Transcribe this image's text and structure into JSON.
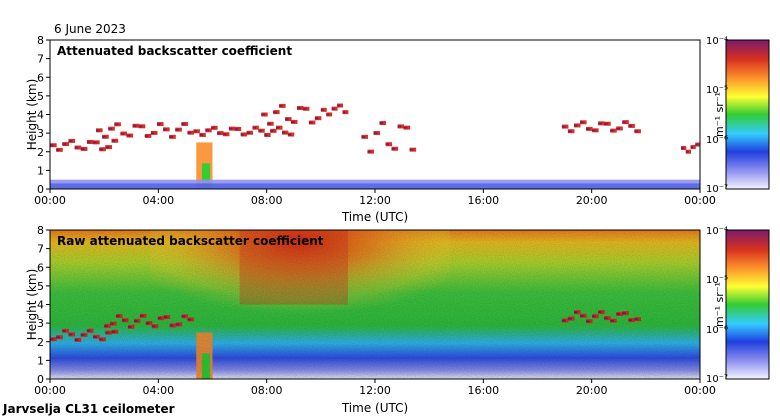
{
  "date_label": "6 June 2023",
  "footer_label": "Jarvselja CL31 ceilometer",
  "colors": {
    "dark_red": "#7f0000",
    "red": "#d7301f",
    "orange": "#fc8d2b",
    "yellow": "#ffff33",
    "green": "#33cc33",
    "cyan": "#33ccff",
    "blue": "#2040e0",
    "violet": "#9090f0",
    "pale": "#e8e8ff",
    "purple": "#7a1a6a"
  },
  "chart_data": [
    {
      "type": "heatmap",
      "title": "Attenuated backscatter coefficient",
      "xlabel": "Time (UTC)",
      "ylabel": "Height (km)",
      "xlim": [
        0,
        24
      ],
      "ylim": [
        0,
        8
      ],
      "x_ticks": [
        "00:00",
        "04:00",
        "08:00",
        "12:00",
        "16:00",
        "20:00",
        "00:00"
      ],
      "y_ticks": [
        "0",
        "1",
        "2",
        "3",
        "4",
        "5",
        "6",
        "7",
        "8"
      ],
      "colorbar": {
        "label": "m⁻¹ sr⁻¹",
        "scale": "log",
        "range": [
          1e-07,
          0.0001
        ],
        "tick_labels": [
          "10⁻⁴",
          "10⁻⁵",
          "10⁻⁶",
          "10⁻⁷"
        ]
      },
      "features": [
        {
          "kind": "cloud_layer",
          "t": [
            0.0,
            2.5
          ],
          "height_km": [
            2.1,
            2.6
          ]
        },
        {
          "kind": "cloud_layer",
          "t": [
            1.7,
            5.3
          ],
          "height_km": [
            2.8,
            3.5
          ]
        },
        {
          "kind": "cloud_layer",
          "t": [
            5.3,
            9.0
          ],
          "height_km": [
            2.9,
            3.3
          ]
        },
        {
          "kind": "cloud_layer",
          "t": [
            7.8,
            10.0
          ],
          "height_km": [
            3.5,
            4.5
          ]
        },
        {
          "kind": "cloud_layer",
          "t": [
            10.0,
            11.0
          ],
          "height_km": [
            4.0,
            4.5
          ]
        },
        {
          "kind": "cloud_layer",
          "t": [
            11.5,
            13.5
          ],
          "height_km": [
            2.0,
            3.6
          ]
        },
        {
          "kind": "cloud_layer",
          "t": [
            18.9,
            21.8
          ],
          "height_km": [
            3.1,
            3.6
          ]
        },
        {
          "kind": "cloud_layer",
          "t": [
            23.3,
            24.0
          ],
          "height_km": [
            2.0,
            2.4
          ]
        },
        {
          "kind": "precipitation",
          "t": [
            5.4,
            6.0
          ],
          "height_km": [
            0.0,
            2.5
          ]
        },
        {
          "kind": "boundary_layer",
          "t": [
            0.0,
            24.0
          ],
          "height_km": [
            0.0,
            0.5
          ]
        }
      ]
    },
    {
      "type": "heatmap",
      "title": "Raw attenuated backscatter coefficient",
      "xlabel": "Time (UTC)",
      "ylabel": "Height (km)",
      "xlim": [
        0,
        24
      ],
      "ylim": [
        0,
        8
      ],
      "x_ticks": [
        "00:00",
        "04:00",
        "08:00",
        "12:00",
        "16:00",
        "20:00",
        "00:00"
      ],
      "y_ticks": [
        "0",
        "1",
        "2",
        "3",
        "4",
        "5",
        "6",
        "7",
        "8"
      ],
      "colorbar": {
        "label": "m⁻¹ sr⁻¹",
        "scale": "log",
        "range": [
          1e-07,
          0.0001
        ],
        "tick_labels": [
          "10⁻⁴",
          "10⁻⁵",
          "10⁻⁶",
          "10⁻⁷"
        ]
      },
      "features": [
        {
          "kind": "noise_maximum",
          "t": [
            7.0,
            11.0
          ],
          "height_km": [
            4.0,
            8.0
          ]
        },
        {
          "kind": "cloud_layer",
          "t": [
            0.0,
            2.5
          ],
          "height_km": [
            2.1,
            2.6
          ]
        },
        {
          "kind": "cloud_layer",
          "t": [
            2.0,
            5.3
          ],
          "height_km": [
            2.8,
            3.4
          ]
        },
        {
          "kind": "cloud_layer",
          "t": [
            18.9,
            21.8
          ],
          "height_km": [
            3.1,
            3.6
          ]
        },
        {
          "kind": "precipitation",
          "t": [
            5.4,
            6.0
          ],
          "height_km": [
            0.0,
            2.5
          ]
        }
      ]
    }
  ]
}
